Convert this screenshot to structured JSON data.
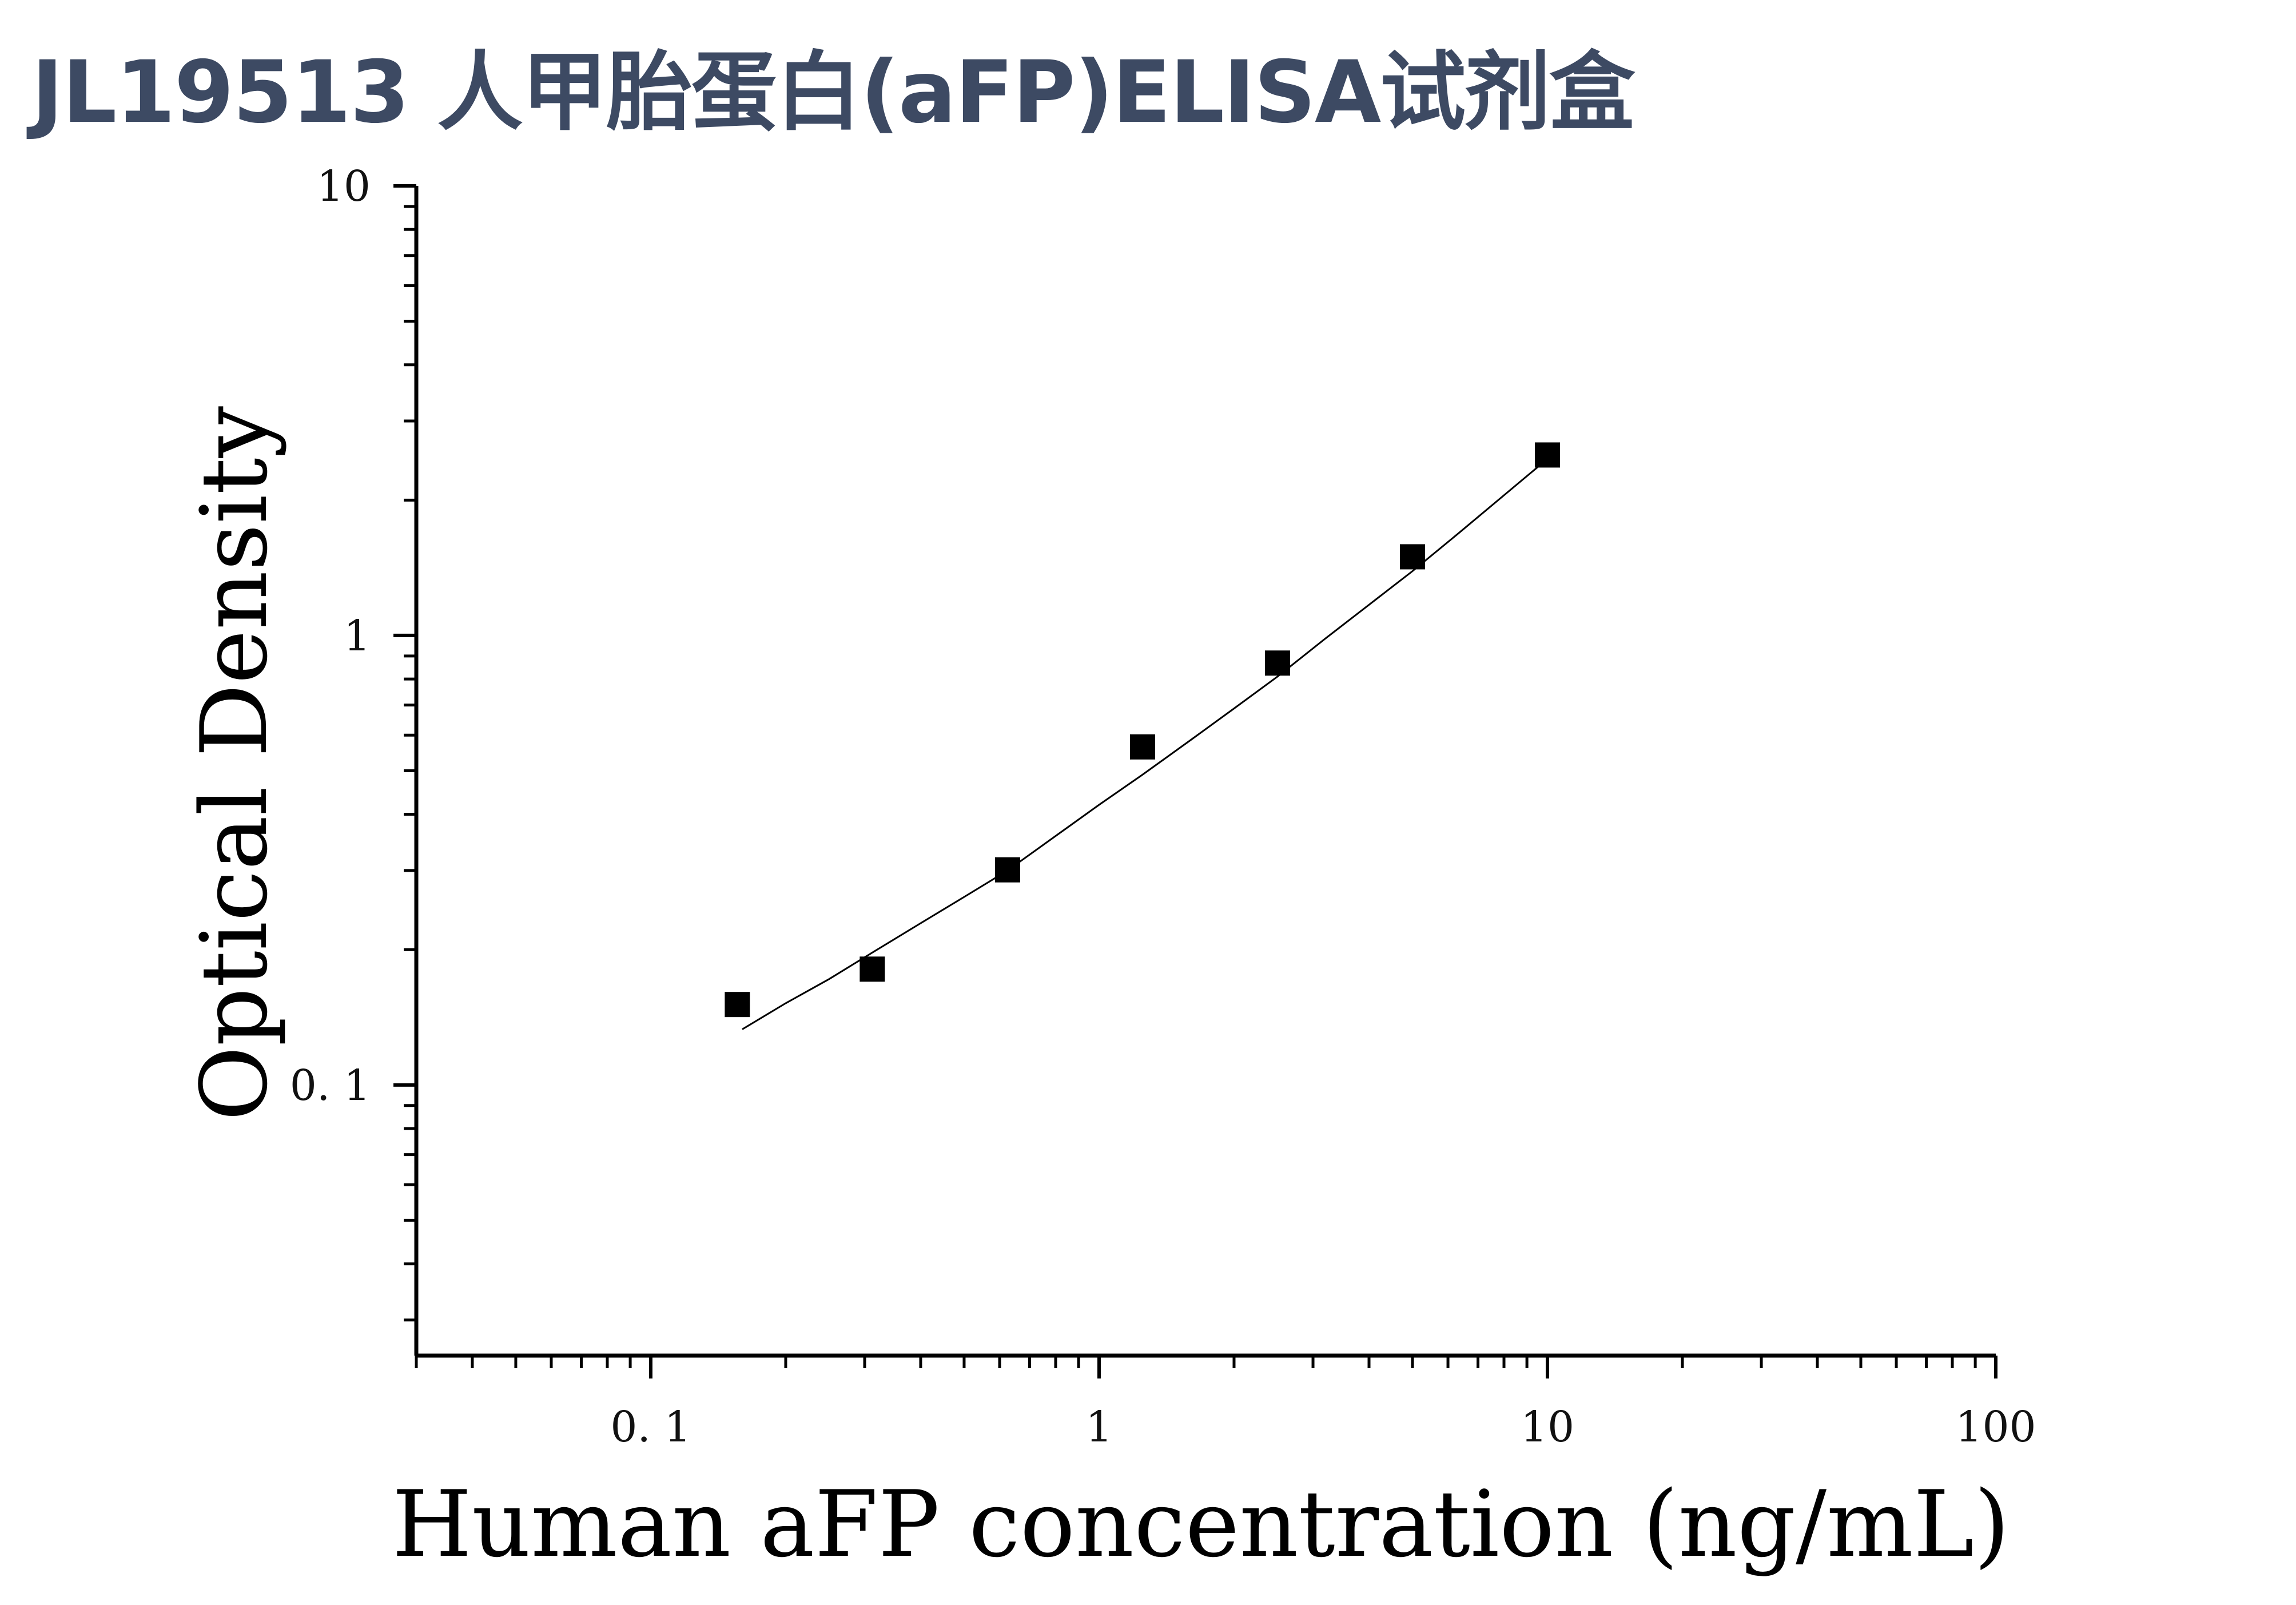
{
  "title": "JL19513 人甲胎蛋白(aFP)ELISA试剂盒",
  "chart_data": {
    "type": "scatter",
    "title": "JL19513 人甲胎蛋白(aFP)ELISA试剂盒",
    "xlabel": "Human aFP concentration (ng/mL)",
    "ylabel": "Optical Density",
    "x_scale": "log",
    "y_scale": "log",
    "xlim": [
      0.03,
      100
    ],
    "ylim": [
      0.025,
      10
    ],
    "x_ticks": [
      {
        "value": 0.1,
        "label": "0. 1"
      },
      {
        "value": 1,
        "label": "1"
      },
      {
        "value": 10,
        "label": "10"
      },
      {
        "value": 100,
        "label": "100"
      }
    ],
    "y_ticks": [
      {
        "value": 0.1,
        "label": "0. 1"
      },
      {
        "value": 1,
        "label": "1"
      },
      {
        "value": 10,
        "label": "10"
      }
    ],
    "grid": false,
    "series": [
      {
        "marker": "square",
        "color": "#000000",
        "x": [
          0.156,
          0.312,
          0.625,
          1.25,
          2.5,
          5,
          10
        ],
        "y": [
          0.151,
          0.181,
          0.301,
          0.565,
          0.868,
          1.496,
          2.52
        ]
      }
    ],
    "fit_curve": {
      "color": "#000000",
      "x": [
        0.16,
        0.2,
        0.25,
        0.312,
        0.4,
        0.5,
        0.625,
        0.8,
        1.0,
        1.25,
        1.6,
        2.0,
        2.5,
        3.2,
        4.0,
        5.0,
        6.3,
        8.0,
        10.0
      ],
      "y": [
        0.133,
        0.152,
        0.172,
        0.197,
        0.229,
        0.262,
        0.3,
        0.358,
        0.42,
        0.49,
        0.585,
        0.688,
        0.81,
        0.985,
        1.17,
        1.39,
        1.68,
        2.05,
        2.47
      ]
    }
  }
}
